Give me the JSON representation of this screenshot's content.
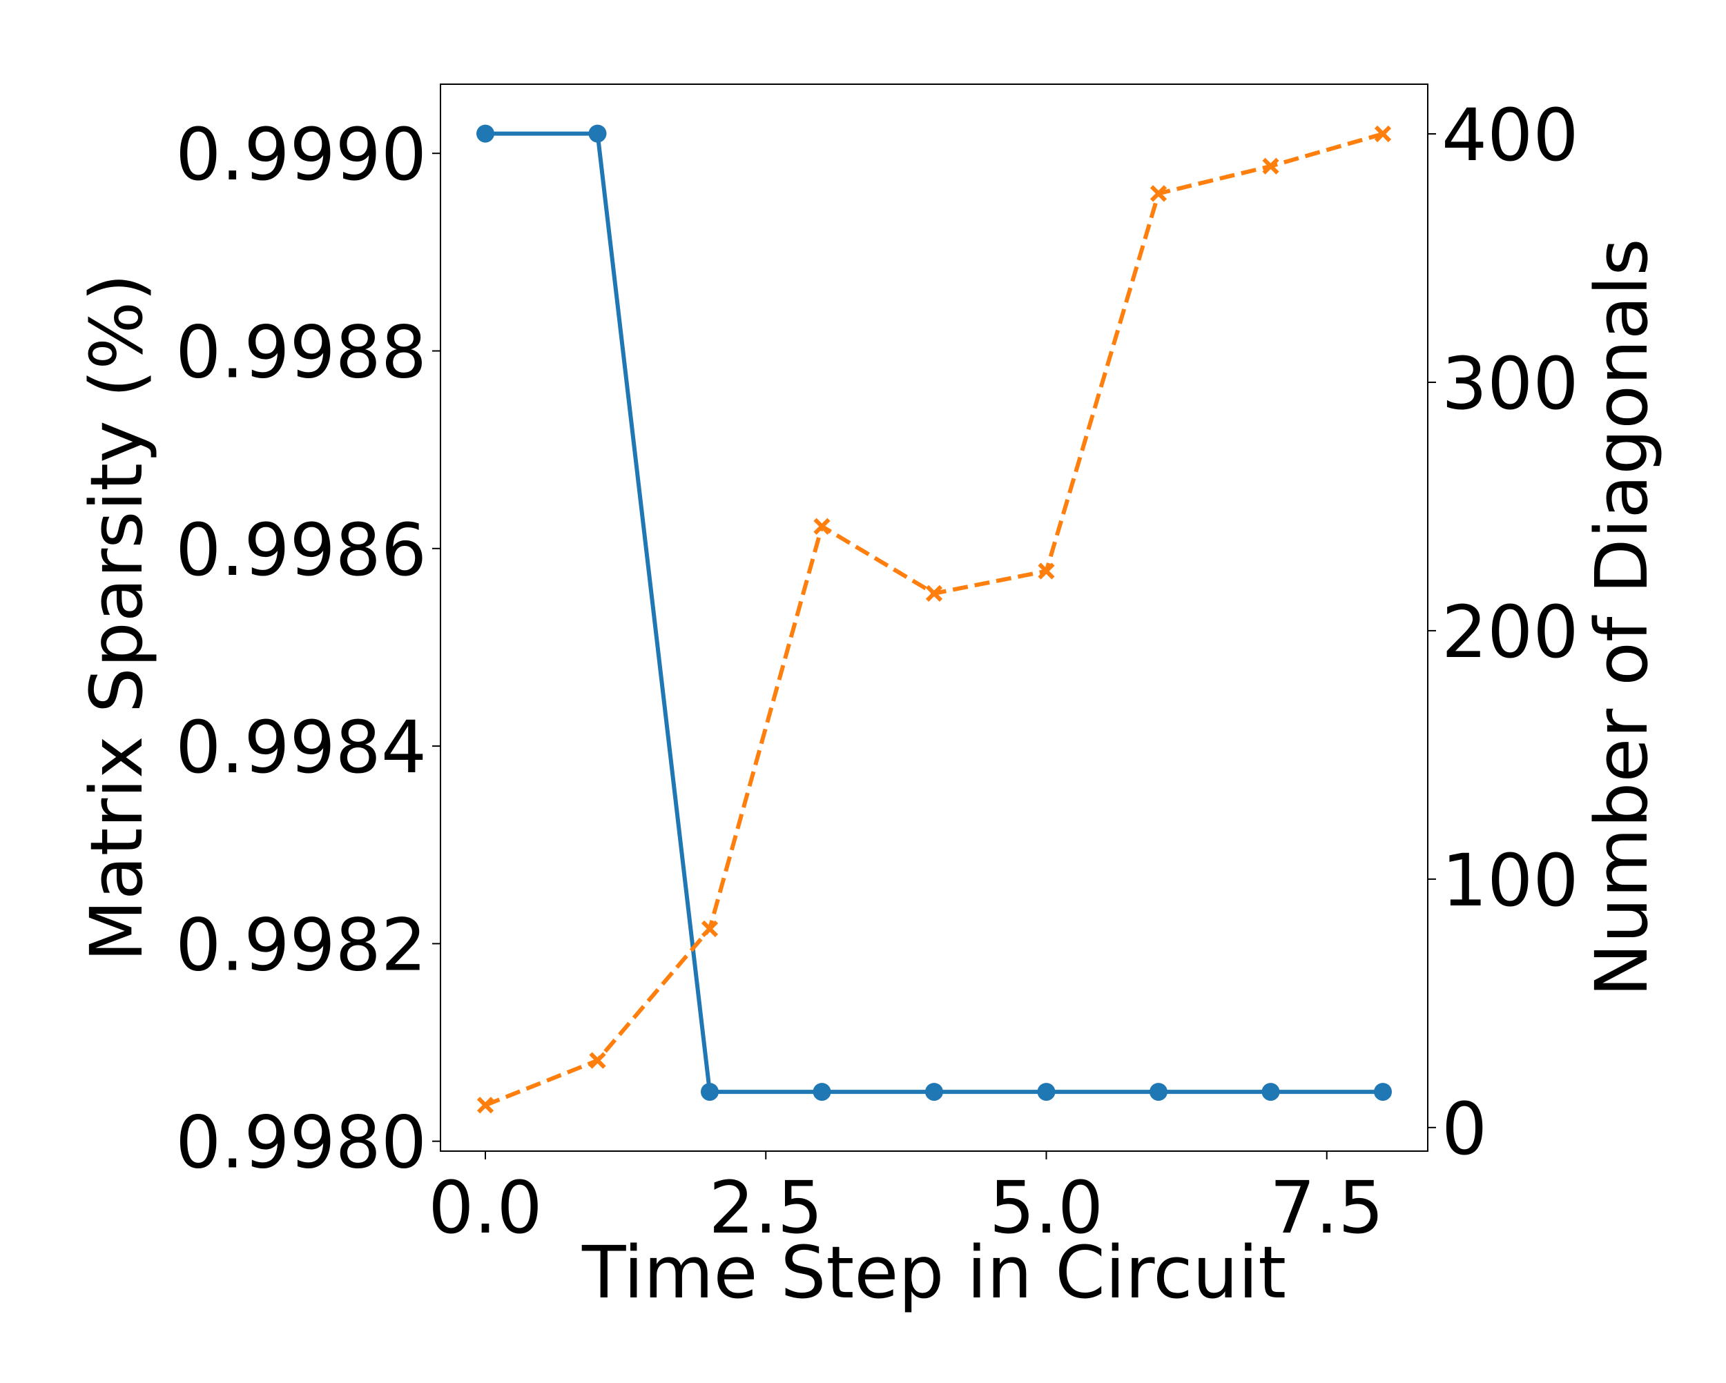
{
  "chart_data": {
    "type": "line",
    "title": "",
    "xlabel": "Time Step in Circuit",
    "ylabel": "Matrix Sparsity (%)",
    "y2label": "Number of Diagonals",
    "x": [
      0,
      1,
      2,
      3,
      4,
      5,
      6,
      7,
      8
    ],
    "xlim": [
      -0.4,
      8.4
    ],
    "ylim": [
      0.99799,
      0.99907
    ],
    "y2lim": [
      -9.5,
      420
    ],
    "grid": false,
    "xticks": [
      0.0,
      2.5,
      5.0,
      7.5
    ],
    "xtick_labels": [
      "0.0",
      "2.5",
      "5.0",
      "7.5"
    ],
    "yticks": [
      0.998,
      0.9982,
      0.9984,
      0.9986,
      0.9988,
      0.999
    ],
    "ytick_labels": [
      "0.9980",
      "0.9982",
      "0.9984",
      "0.9986",
      "0.9988",
      "0.9990"
    ],
    "y2ticks": [
      0,
      100,
      200,
      300,
      400
    ],
    "y2tick_labels": [
      "0",
      "100",
      "200",
      "300",
      "400"
    ],
    "series": [
      {
        "axis": "left",
        "color": "#1f77b4",
        "linestyle": "solid",
        "marker": "circle",
        "values": [
          0.99902,
          0.99902,
          0.99805,
          0.99805,
          0.99805,
          0.99805,
          0.99805,
          0.99805,
          0.99805
        ]
      },
      {
        "axis": "right",
        "color": "#ff7f0e",
        "linestyle": "dashed",
        "marker": "x",
        "values": [
          9,
          27,
          80,
          242,
          215,
          224,
          376,
          387,
          400
        ]
      }
    ]
  }
}
